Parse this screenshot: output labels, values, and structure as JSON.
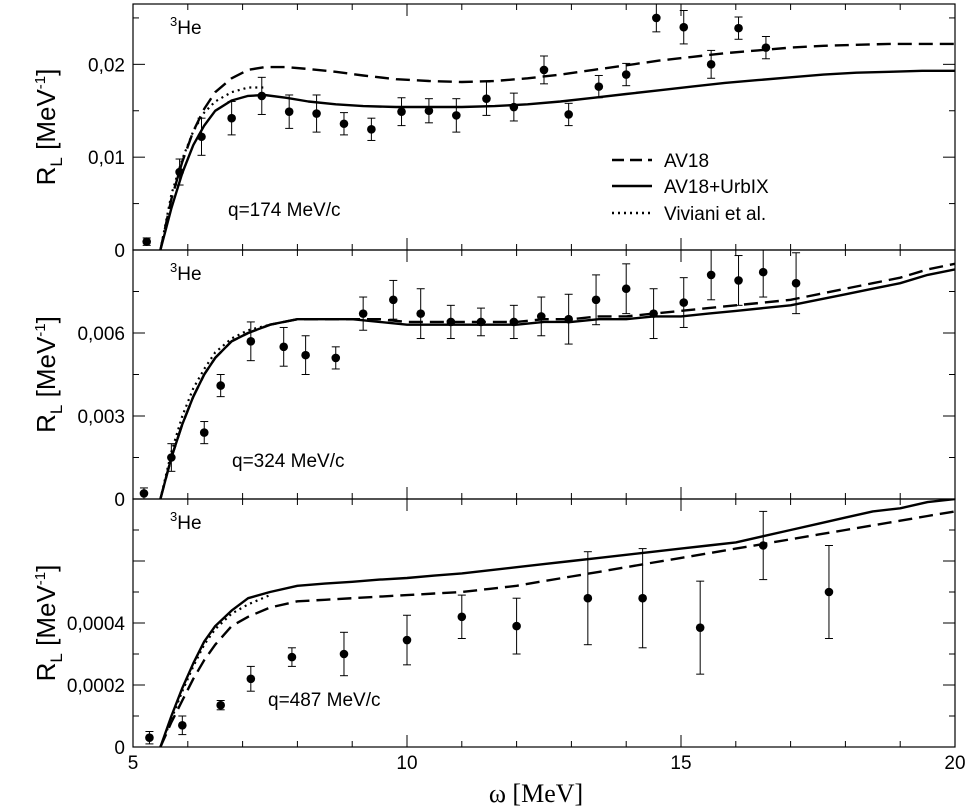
{
  "chart_data": [
    {
      "type": "line",
      "panel": "top",
      "nucleus": "He",
      "nucleus_mass": "3",
      "annotation": "q=174 MeV/c",
      "ylabel": "R",
      "ylabel_sub": "L",
      "ylabel_unit": "[MeV",
      "ylabel_unit_sup": "-1",
      "ylabel_close": "]",
      "xlim": [
        5,
        20
      ],
      "ylim": [
        0,
        0.0265
      ],
      "yticks": [
        0,
        0.01,
        0.02
      ],
      "ytick_labels": [
        "0",
        "0,01",
        "0,02"
      ],
      "legend": [
        {
          "name": "AV18",
          "style": "dashed"
        },
        {
          "name": "AV18+UrbIX",
          "style": "solid"
        },
        {
          "name": "Viviani et al.",
          "style": "dotted"
        }
      ],
      "series": [
        {
          "name": "AV18",
          "style": "dashed",
          "x": [
            5.5,
            5.7,
            5.9,
            6.1,
            6.3,
            6.5,
            6.8,
            7.1,
            7.4,
            7.8,
            8.2,
            8.7,
            9.2,
            9.8,
            10.4,
            11.0,
            11.6,
            12.2,
            12.8,
            13.4,
            14.0,
            14.6,
            15.2,
            15.8,
            16.4,
            17.0,
            17.6,
            18.2,
            18.8,
            19.4,
            20.0
          ],
          "y": [
            0.0,
            0.0055,
            0.0095,
            0.0128,
            0.0152,
            0.017,
            0.0185,
            0.0194,
            0.0197,
            0.0197,
            0.0195,
            0.0192,
            0.0188,
            0.0184,
            0.0182,
            0.0181,
            0.0182,
            0.0185,
            0.0189,
            0.0194,
            0.0199,
            0.0204,
            0.0208,
            0.0212,
            0.0215,
            0.0218,
            0.022,
            0.0221,
            0.0222,
            0.0222,
            0.0222
          ]
        },
        {
          "name": "AV18+UrbIX",
          "style": "solid",
          "x": [
            5.5,
            5.7,
            5.9,
            6.1,
            6.3,
            6.5,
            6.8,
            7.1,
            7.4,
            7.8,
            8.2,
            8.7,
            9.2,
            9.8,
            10.4,
            11.0,
            11.6,
            12.2,
            12.8,
            13.4,
            14.0,
            14.6,
            15.2,
            15.8,
            16.4,
            17.0,
            17.6,
            18.2,
            18.8,
            19.4,
            20.0
          ],
          "y": [
            0.0,
            0.0045,
            0.0083,
            0.0113,
            0.0134,
            0.015,
            0.0161,
            0.0166,
            0.0167,
            0.0164,
            0.016,
            0.0157,
            0.0155,
            0.0154,
            0.0154,
            0.0154,
            0.0155,
            0.0157,
            0.016,
            0.0164,
            0.0168,
            0.0172,
            0.0176,
            0.018,
            0.0183,
            0.0186,
            0.0189,
            0.0191,
            0.0192,
            0.0193,
            0.0193
          ]
        },
        {
          "name": "Viviani et al.",
          "style": "dotted",
          "x": [
            5.5,
            5.7,
            5.9,
            6.1,
            6.3,
            6.5,
            6.8,
            7.1,
            7.4
          ],
          "y": [
            0.0,
            0.006,
            0.0098,
            0.0128,
            0.0148,
            0.016,
            0.017,
            0.0175,
            0.0175
          ]
        },
        {
          "name": "data",
          "style": "points",
          "x": [
            5.25,
            5.85,
            6.25,
            6.8,
            7.35,
            7.85,
            8.35,
            8.85,
            9.35,
            9.9,
            10.4,
            10.9,
            11.45,
            11.95,
            12.5,
            12.95,
            13.5,
            14.0,
            14.55,
            15.05,
            15.55,
            16.05,
            16.55
          ],
          "y": [
            0.0009,
            0.0084,
            0.0122,
            0.0142,
            0.0166,
            0.0149,
            0.0147,
            0.0136,
            0.013,
            0.0149,
            0.015,
            0.0145,
            0.0163,
            0.0154,
            0.0194,
            0.0146,
            0.0176,
            0.0189,
            0.025,
            0.024,
            0.02,
            0.0239,
            0.0218
          ],
          "err": [
            0.0004,
            0.0014,
            0.002,
            0.0018,
            0.002,
            0.0018,
            0.002,
            0.0012,
            0.0012,
            0.0015,
            0.0013,
            0.0018,
            0.0018,
            0.0015,
            0.0015,
            0.0012,
            0.0012,
            0.0012,
            0.0015,
            0.0018,
            0.0015,
            0.0012,
            0.0012
          ]
        }
      ]
    },
    {
      "type": "line",
      "panel": "middle",
      "nucleus": "He",
      "nucleus_mass": "3",
      "annotation": "q=324 MeV/c",
      "ylabel": "R",
      "ylabel_sub": "L",
      "ylabel_unit": "[MeV",
      "ylabel_unit_sup": "-1",
      "ylabel_close": "]",
      "xlim": [
        5,
        20
      ],
      "ylim": [
        0,
        0.009
      ],
      "yticks": [
        0,
        0.003,
        0.006
      ],
      "ytick_labels": [
        "0",
        "0,003",
        "0,006"
      ],
      "series": [
        {
          "name": "AV18",
          "style": "dashed",
          "x": [
            5.5,
            5.7,
            5.9,
            6.1,
            6.3,
            6.5,
            6.8,
            7.1,
            7.5,
            8.0,
            8.5,
            9.0,
            9.5,
            10.0,
            10.5,
            11.0,
            11.5,
            12.0,
            12.5,
            13.0,
            13.5,
            14.0,
            14.5,
            15.0,
            15.5,
            16.0,
            16.5,
            17.0,
            17.5,
            18.0,
            18.5,
            19.0,
            19.5,
            20.0
          ],
          "y": [
            0.0,
            0.0015,
            0.0027,
            0.0037,
            0.0045,
            0.0051,
            0.0057,
            0.006,
            0.0063,
            0.0065,
            0.0065,
            0.0065,
            0.0065,
            0.0064,
            0.0064,
            0.0064,
            0.0064,
            0.0064,
            0.0065,
            0.0065,
            0.0066,
            0.0066,
            0.0067,
            0.0068,
            0.0069,
            0.007,
            0.0071,
            0.0072,
            0.0074,
            0.0076,
            0.0078,
            0.008,
            0.0083,
            0.0085
          ]
        },
        {
          "name": "AV18+UrbIX",
          "style": "solid",
          "x": [
            5.5,
            5.7,
            5.9,
            6.1,
            6.3,
            6.5,
            6.8,
            7.1,
            7.5,
            8.0,
            8.5,
            9.0,
            9.5,
            10.0,
            10.5,
            11.0,
            11.5,
            12.0,
            12.5,
            13.0,
            13.5,
            14.0,
            14.5,
            15.0,
            15.5,
            16.0,
            16.5,
            17.0,
            17.5,
            18.0,
            18.5,
            19.0,
            19.5,
            20.0
          ],
          "y": [
            0.0,
            0.0015,
            0.0027,
            0.0037,
            0.0045,
            0.0051,
            0.0057,
            0.006,
            0.0063,
            0.0065,
            0.0065,
            0.0065,
            0.0064,
            0.0063,
            0.0063,
            0.0063,
            0.0063,
            0.0063,
            0.0064,
            0.0064,
            0.0065,
            0.0065,
            0.0066,
            0.0066,
            0.0067,
            0.0068,
            0.0069,
            0.007,
            0.0072,
            0.0074,
            0.0076,
            0.0078,
            0.0081,
            0.0083
          ]
        },
        {
          "name": "Viviani et al.",
          "style": "dotted",
          "x": [
            5.5,
            5.7,
            5.9,
            6.1,
            6.3,
            6.5,
            6.8,
            7.1,
            7.5
          ],
          "y": [
            0.0,
            0.0017,
            0.003,
            0.004,
            0.0047,
            0.0053,
            0.0058,
            0.0061,
            0.0063
          ]
        },
        {
          "name": "data",
          "style": "points",
          "x": [
            5.2,
            5.7,
            6.3,
            6.6,
            7.15,
            7.75,
            8.15,
            8.7,
            9.2,
            9.75,
            10.25,
            10.8,
            11.35,
            11.95,
            12.45,
            12.95,
            13.45,
            14.0,
            14.5,
            15.05,
            15.55,
            16.05,
            16.5,
            17.1
          ],
          "y": [
            0.0002,
            0.0015,
            0.0024,
            0.0041,
            0.0057,
            0.0055,
            0.0052,
            0.0051,
            0.0067,
            0.0072,
            0.0067,
            0.0064,
            0.0064,
            0.0064,
            0.0066,
            0.0065,
            0.0072,
            0.0076,
            0.0067,
            0.0071,
            0.0081,
            0.0079,
            0.0082,
            0.0078
          ],
          "err": [
            0.0002,
            0.0005,
            0.0004,
            0.0004,
            0.0007,
            0.0007,
            0.0007,
            0.0004,
            0.0006,
            0.0007,
            0.0009,
            0.0006,
            0.0005,
            0.0006,
            0.0007,
            0.0009,
            0.0009,
            0.0009,
            0.0009,
            0.0009,
            0.0009,
            0.0009,
            0.0009,
            0.0011
          ]
        }
      ]
    },
    {
      "type": "line",
      "panel": "bottom",
      "nucleus": "He",
      "nucleus_mass": "3",
      "annotation": "q=487 MeV/c",
      "ylabel": "R",
      "ylabel_sub": "L",
      "ylabel_unit": "[MeV",
      "ylabel_unit_sup": "-1",
      "ylabel_close": "]",
      "xlabel": "ω [MeV]",
      "xlim": [
        5,
        20
      ],
      "xticks": [
        5,
        10,
        15,
        20
      ],
      "xtick_labels": [
        "5",
        "10",
        "15",
        "20"
      ],
      "ylim": [
        0,
        0.0008
      ],
      "yticks": [
        0,
        0.0002,
        0.0004
      ],
      "ytick_labels": [
        "0",
        "0,0002",
        "0,0004"
      ],
      "series": [
        {
          "name": "AV18",
          "style": "dashed",
          "x": [
            5.5,
            5.7,
            5.9,
            6.1,
            6.3,
            6.5,
            6.8,
            7.1,
            7.5,
            8.0,
            8.5,
            9.0,
            9.5,
            10.0,
            10.5,
            11.0,
            11.5,
            12.0,
            12.5,
            13.0,
            13.5,
            14.0,
            14.5,
            15.0,
            15.5,
            16.0,
            16.5,
            17.0,
            17.5,
            18.0,
            18.5,
            19.0,
            19.5,
            20.0
          ],
          "y": [
            0.0,
            8e-05,
            0.00015,
            0.00022,
            0.00028,
            0.00033,
            0.00039,
            0.00042,
            0.00045,
            0.00047,
            0.000475,
            0.00048,
            0.000485,
            0.00049,
            0.000495,
            0.0005,
            0.00051,
            0.00052,
            0.000535,
            0.00055,
            0.000565,
            0.00058,
            0.000595,
            0.00061,
            0.000625,
            0.00064,
            0.000655,
            0.00067,
            0.000685,
            0.0007,
            0.000715,
            0.00073,
            0.000745,
            0.00076
          ]
        },
        {
          "name": "AV18+UrbIX",
          "style": "solid",
          "x": [
            5.5,
            5.7,
            5.9,
            6.1,
            6.3,
            6.5,
            6.8,
            7.1,
            7.5,
            8.0,
            8.5,
            9.0,
            9.5,
            10.0,
            10.5,
            11.0,
            11.5,
            12.0,
            12.5,
            13.0,
            13.5,
            14.0,
            14.5,
            15.0,
            15.5,
            16.0,
            16.5,
            17.0,
            17.5,
            18.0,
            18.5,
            19.0,
            19.5,
            20.0
          ],
          "y": [
            0.0,
            0.0001,
            0.00019,
            0.00027,
            0.00034,
            0.00039,
            0.00044,
            0.00048,
            0.0005,
            0.00052,
            0.000527,
            0.000533,
            0.00054,
            0.000545,
            0.000553,
            0.00056,
            0.00057,
            0.00058,
            0.00059,
            0.0006,
            0.00061,
            0.00062,
            0.00063,
            0.00064,
            0.00065,
            0.00066,
            0.00068,
            0.0007,
            0.00072,
            0.00074,
            0.00076,
            0.00077,
            0.00079,
            0.0008
          ]
        },
        {
          "name": "Viviani et al.",
          "style": "dotted",
          "x": [
            5.5,
            5.7,
            5.9,
            6.1,
            6.3,
            6.5,
            6.8,
            7.1,
            7.5
          ],
          "y": [
            0.0,
            9e-05,
            0.00018,
            0.00026,
            0.00033,
            0.00038,
            0.00043,
            0.00046,
            0.00049
          ]
        },
        {
          "name": "data",
          "style": "points",
          "x": [
            5.3,
            5.9,
            6.6,
            7.15,
            7.9,
            8.85,
            10.0,
            11.0,
            12.0,
            13.3,
            14.3,
            15.35,
            16.5,
            17.7
          ],
          "y": [
            3e-05,
            7e-05,
            0.000135,
            0.00022,
            0.00029,
            0.0003,
            0.000345,
            0.00042,
            0.00039,
            0.00048,
            0.00048,
            0.000385,
            0.00065,
            0.0005
          ],
          "err": [
            2e-05,
            3e-05,
            1.5e-05,
            4e-05,
            3e-05,
            7e-05,
            8e-05,
            7e-05,
            9e-05,
            0.00015,
            0.00016,
            0.00015,
            0.00011,
            0.00015
          ]
        }
      ]
    }
  ]
}
